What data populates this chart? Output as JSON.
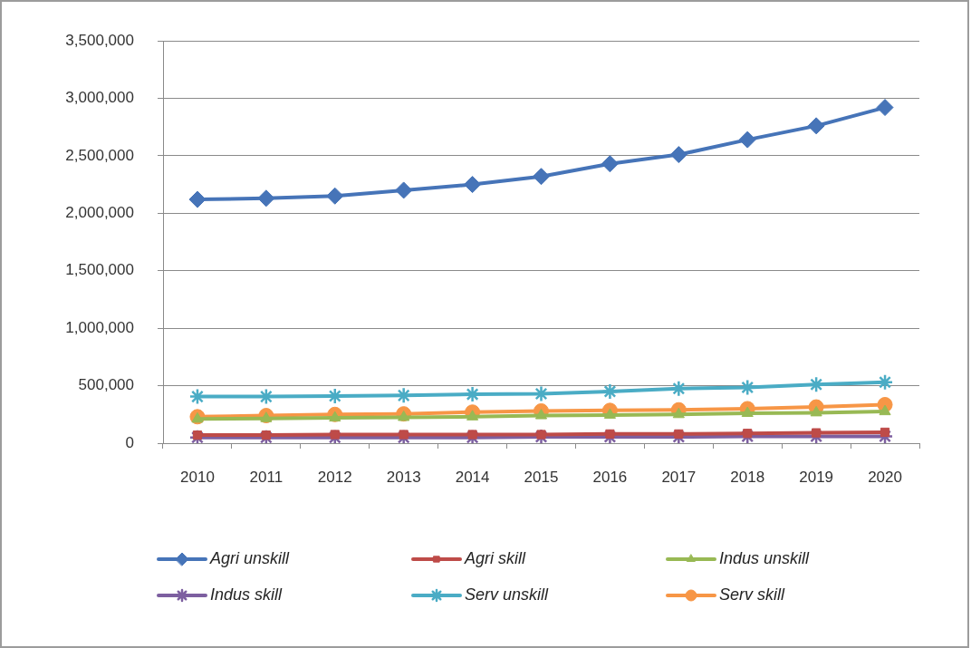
{
  "chart_data": {
    "type": "line",
    "categories": [
      "2010",
      "2011",
      "2012",
      "2013",
      "2014",
      "2015",
      "2016",
      "2017",
      "2018",
      "2019",
      "2020"
    ],
    "series": [
      {
        "name": "Agri unskill",
        "color": "#4674b8",
        "marker": "diamond",
        "values": [
          2120000,
          2130000,
          2150000,
          2200000,
          2250000,
          2320000,
          2430000,
          2510000,
          2640000,
          2760000,
          2920000
        ]
      },
      {
        "name": "Agri skill",
        "color": "#be4b48",
        "marker": "square",
        "values": [
          70000,
          70000,
          75000,
          75000,
          75000,
          75000,
          80000,
          80000,
          85000,
          90000,
          95000
        ]
      },
      {
        "name": "Indus unskill",
        "color": "#98b954",
        "marker": "triangle",
        "values": [
          210000,
          215000,
          220000,
          225000,
          230000,
          240000,
          245000,
          250000,
          260000,
          265000,
          275000
        ]
      },
      {
        "name": "Indus skill",
        "color": "#7d5fa0",
        "marker": "cross",
        "values": [
          50000,
          50000,
          50000,
          50000,
          50000,
          55000,
          55000,
          55000,
          60000,
          60000,
          60000
        ]
      },
      {
        "name": "Serv unskill",
        "color": "#4aacc5",
        "marker": "cross",
        "values": [
          405000,
          405000,
          410000,
          415000,
          425000,
          430000,
          450000,
          475000,
          485000,
          510000,
          530000
        ]
      },
      {
        "name": "Serv skill",
        "color": "#f79646",
        "marker": "circle",
        "values": [
          230000,
          240000,
          250000,
          255000,
          270000,
          280000,
          285000,
          290000,
          300000,
          315000,
          335000
        ]
      }
    ],
    "ylim": [
      0,
      3500000
    ],
    "yticks": [
      0,
      {
        "value": 500000,
        "label": "500,000"
      },
      {
        "value": 1000000,
        "label": "1,000,000"
      },
      {
        "value": 1500000,
        "label": "1,500,000"
      },
      {
        "value": 2000000,
        "label": "2,000,000"
      },
      {
        "value": 2500000,
        "label": "2,500,000"
      },
      {
        "value": 3000000,
        "label": "3,000,000"
      },
      {
        "value": 3500000,
        "label": "3,500,000"
      }
    ],
    "grid": "y",
    "legend": "bottom"
  }
}
